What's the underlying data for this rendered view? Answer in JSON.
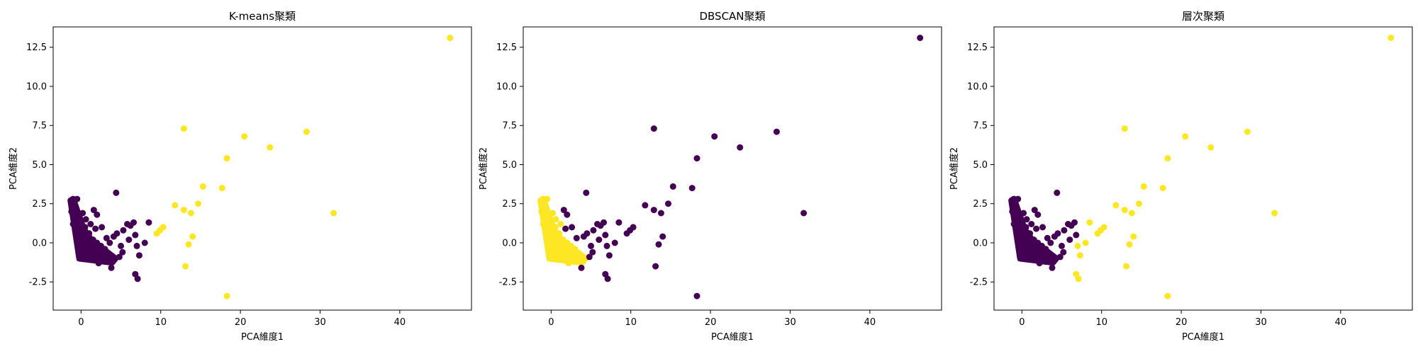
{
  "figure": {
    "background": "#ffffff"
  },
  "chart_data": [
    {
      "type": "scatter",
      "title": "K-means聚類",
      "xlabel": "PCA維度1",
      "ylabel": "PCA維度2",
      "xlim": [
        -3.5,
        49
      ],
      "ylim": [
        -4.3,
        13.8
      ],
      "xticks": [
        0,
        10,
        20,
        30,
        40
      ],
      "yticks": [
        -2.5,
        0.0,
        2.5,
        5.0,
        7.5,
        10.0,
        12.5
      ],
      "ytick_labels": [
        "-2.5",
        "0.0",
        "2.5",
        "5.0",
        "7.5",
        "10.0",
        "12.5"
      ],
      "grid": false,
      "dense_cluster_color": "#440154",
      "series": [
        {
          "color": "#440154",
          "points": [
            [
              -1.1,
              2.6
            ],
            [
              -0.5,
              2.8
            ],
            [
              -0.8,
              2.3
            ],
            [
              -1.2,
              2.0
            ],
            [
              -0.9,
              1.6
            ],
            [
              -1.0,
              1.2
            ],
            [
              -0.7,
              0.9
            ],
            [
              -0.6,
              0.5
            ],
            [
              -0.5,
              0.1
            ],
            [
              -0.4,
              -0.3
            ],
            [
              -0.2,
              -0.7
            ],
            [
              0.0,
              -0.9
            ],
            [
              0.5,
              -1.0
            ],
            [
              1.0,
              -1.0
            ],
            [
              1.5,
              -0.9
            ],
            [
              2.0,
              -1.0
            ],
            [
              2.5,
              -1.1
            ],
            [
              3.0,
              -1.2
            ],
            [
              3.5,
              -1.1
            ],
            [
              4.0,
              -1.0
            ],
            [
              0.3,
              0.3
            ],
            [
              0.8,
              0.0
            ],
            [
              1.3,
              -0.3
            ],
            [
              1.8,
              -0.5
            ],
            [
              2.3,
              -0.6
            ],
            [
              2.8,
              -0.8
            ],
            [
              0.5,
              1.0
            ],
            [
              1.0,
              0.6
            ],
            [
              1.5,
              0.2
            ],
            [
              2.0,
              0.0
            ],
            [
              2.5,
              -0.2
            ],
            [
              3.0,
              -0.4
            ],
            [
              0.2,
              1.9
            ],
            [
              0.6,
              1.5
            ],
            [
              1.2,
              1.2
            ],
            [
              1.6,
              2.1
            ],
            [
              2.0,
              1.8
            ],
            [
              1.8,
              0.9
            ],
            [
              2.6,
              1.0
            ],
            [
              3.2,
              0.3
            ],
            [
              3.6,
              0.0
            ],
            [
              4.4,
              3.2
            ],
            [
              4.1,
              0.4
            ],
            [
              4.5,
              0.6
            ],
            [
              3.8,
              -1.6
            ],
            [
              5.0,
              -0.2
            ],
            [
              5.2,
              -0.6
            ],
            [
              5.3,
              0.8
            ],
            [
              5.8,
              1.2
            ],
            [
              6.2,
              1.1
            ],
            [
              6.6,
              1.3
            ],
            [
              6.8,
              0.5
            ],
            [
              7.0,
              -0.2
            ],
            [
              6.8,
              -2.0
            ],
            [
              7.1,
              -2.3
            ],
            [
              7.3,
              -0.8
            ],
            [
              8.5,
              1.3
            ],
            [
              8.0,
              0.0
            ],
            [
              6.0,
              0.2
            ],
            [
              4.8,
              -0.9
            ],
            [
              2.2,
              -1.3
            ],
            [
              1.0,
              -0.5
            ]
          ]
        },
        {
          "color": "#fde725",
          "points": [
            [
              46.3,
              13.1
            ],
            [
              12.9,
              7.3
            ],
            [
              20.5,
              6.8
            ],
            [
              23.7,
              6.1
            ],
            [
              28.3,
              7.1
            ],
            [
              18.3,
              5.4
            ],
            [
              17.7,
              3.5
            ],
            [
              15.3,
              3.6
            ],
            [
              11.8,
              2.4
            ],
            [
              12.9,
              2.1
            ],
            [
              13.8,
              1.9
            ],
            [
              14.7,
              2.5
            ],
            [
              31.7,
              1.9
            ],
            [
              9.5,
              0.6
            ],
            [
              9.9,
              0.8
            ],
            [
              10.3,
              1.0
            ],
            [
              13.5,
              -0.1
            ],
            [
              14.0,
              0.4
            ],
            [
              13.1,
              -1.5
            ],
            [
              18.3,
              -3.4
            ]
          ]
        }
      ]
    },
    {
      "type": "scatter",
      "title": "DBSCAN聚類",
      "xlabel": "PCA維度1",
      "ylabel": "PCA維度2",
      "xlim": [
        -3.5,
        49
      ],
      "ylim": [
        -4.3,
        13.8
      ],
      "xticks": [
        0,
        10,
        20,
        30,
        40
      ],
      "yticks": [
        -2.5,
        0.0,
        2.5,
        5.0,
        7.5,
        10.0,
        12.5
      ],
      "ytick_labels": [
        "-2.5",
        "0.0",
        "2.5",
        "5.0",
        "7.5",
        "10.0",
        "12.5"
      ],
      "grid": false,
      "dense_cluster_color": "#fde725",
      "series": [
        {
          "color": "#440154",
          "points": [
            [
              46.3,
              13.1
            ],
            [
              12.9,
              7.3
            ],
            [
              20.5,
              6.8
            ],
            [
              23.7,
              6.1
            ],
            [
              28.3,
              7.1
            ],
            [
              18.3,
              5.4
            ],
            [
              17.7,
              3.5
            ],
            [
              15.3,
              3.6
            ],
            [
              11.8,
              2.4
            ],
            [
              12.9,
              2.1
            ],
            [
              13.8,
              1.9
            ],
            [
              14.7,
              2.5
            ],
            [
              31.7,
              1.9
            ],
            [
              9.5,
              0.6
            ],
            [
              9.9,
              0.8
            ],
            [
              10.3,
              1.0
            ],
            [
              13.5,
              -0.1
            ],
            [
              14.0,
              0.4
            ],
            [
              13.1,
              -1.5
            ],
            [
              18.3,
              -3.4
            ],
            [
              4.4,
              3.2
            ],
            [
              1.6,
              2.1
            ],
            [
              2.0,
              1.8
            ],
            [
              1.8,
              0.9
            ],
            [
              2.6,
              1.0
            ],
            [
              3.2,
              0.3
            ],
            [
              4.1,
              0.4
            ],
            [
              4.5,
              0.6
            ],
            [
              3.8,
              -1.6
            ],
            [
              5.0,
              -0.2
            ],
            [
              5.2,
              -0.6
            ],
            [
              5.3,
              0.8
            ],
            [
              5.8,
              1.2
            ],
            [
              6.2,
              1.1
            ],
            [
              6.6,
              1.3
            ],
            [
              6.8,
              0.5
            ],
            [
              7.0,
              -0.2
            ],
            [
              6.8,
              -2.0
            ],
            [
              7.1,
              -2.3
            ],
            [
              7.3,
              -0.8
            ],
            [
              8.5,
              1.3
            ],
            [
              8.0,
              0.0
            ],
            [
              6.0,
              0.2
            ],
            [
              4.8,
              -0.9
            ]
          ]
        },
        {
          "color": "#fde725",
          "points": [
            [
              -1.1,
              2.6
            ],
            [
              -0.5,
              2.8
            ],
            [
              -0.8,
              2.3
            ],
            [
              -1.2,
              2.0
            ],
            [
              -0.9,
              1.6
            ],
            [
              -1.0,
              1.2
            ],
            [
              -0.7,
              0.9
            ],
            [
              -0.6,
              0.5
            ],
            [
              -0.5,
              0.1
            ],
            [
              -0.4,
              -0.3
            ],
            [
              -0.2,
              -0.7
            ],
            [
              0.0,
              -0.9
            ],
            [
              0.5,
              -1.0
            ],
            [
              1.0,
              -1.0
            ],
            [
              1.5,
              -0.9
            ],
            [
              2.0,
              -1.0
            ],
            [
              2.5,
              -1.1
            ],
            [
              3.0,
              -1.2
            ],
            [
              3.5,
              -1.1
            ],
            [
              0.3,
              0.3
            ],
            [
              0.8,
              0.0
            ],
            [
              1.3,
              -0.3
            ],
            [
              1.8,
              -0.5
            ],
            [
              2.3,
              -0.6
            ],
            [
              2.8,
              -0.8
            ],
            [
              0.5,
              1.0
            ],
            [
              1.0,
              0.6
            ],
            [
              1.5,
              0.2
            ],
            [
              2.0,
              0.0
            ],
            [
              2.5,
              -0.2
            ],
            [
              3.0,
              -0.4
            ],
            [
              0.2,
              1.9
            ],
            [
              0.6,
              1.5
            ],
            [
              1.2,
              1.2
            ],
            [
              2.2,
              -1.3
            ],
            [
              1.0,
              -0.5
            ]
          ]
        }
      ]
    },
    {
      "type": "scatter",
      "title": "層次聚類",
      "xlabel": "PCA維度1",
      "ylabel": "PCA維度2",
      "xlim": [
        -3.5,
        49
      ],
      "ylim": [
        -4.3,
        13.8
      ],
      "xticks": [
        0,
        10,
        20,
        30,
        40
      ],
      "yticks": [
        -2.5,
        0.0,
        2.5,
        5.0,
        7.5,
        10.0,
        12.5
      ],
      "ytick_labels": [
        "-2.5",
        "0.0",
        "2.5",
        "5.0",
        "7.5",
        "10.0",
        "12.5"
      ],
      "grid": false,
      "dense_cluster_color": "#440154",
      "series": [
        {
          "color": "#440154",
          "points": [
            [
              -1.1,
              2.6
            ],
            [
              -0.5,
              2.8
            ],
            [
              -0.8,
              2.3
            ],
            [
              -1.2,
              2.0
            ],
            [
              -0.9,
              1.6
            ],
            [
              -1.0,
              1.2
            ],
            [
              -0.7,
              0.9
            ],
            [
              -0.6,
              0.5
            ],
            [
              -0.5,
              0.1
            ],
            [
              -0.4,
              -0.3
            ],
            [
              -0.2,
              -0.7
            ],
            [
              0.0,
              -0.9
            ],
            [
              0.5,
              -1.0
            ],
            [
              1.0,
              -1.0
            ],
            [
              1.5,
              -0.9
            ],
            [
              2.0,
              -1.0
            ],
            [
              2.5,
              -1.1
            ],
            [
              3.0,
              -1.2
            ],
            [
              3.5,
              -1.1
            ],
            [
              4.0,
              -1.0
            ],
            [
              0.3,
              0.3
            ],
            [
              0.8,
              0.0
            ],
            [
              1.3,
              -0.3
            ],
            [
              1.8,
              -0.5
            ],
            [
              2.3,
              -0.6
            ],
            [
              2.8,
              -0.8
            ],
            [
              0.5,
              1.0
            ],
            [
              1.0,
              0.6
            ],
            [
              1.5,
              0.2
            ],
            [
              2.0,
              0.0
            ],
            [
              2.5,
              -0.2
            ],
            [
              3.0,
              -0.4
            ],
            [
              0.2,
              1.9
            ],
            [
              0.6,
              1.5
            ],
            [
              1.2,
              1.2
            ],
            [
              1.6,
              2.1
            ],
            [
              2.0,
              1.8
            ],
            [
              1.8,
              0.9
            ],
            [
              2.6,
              1.0
            ],
            [
              3.2,
              0.3
            ],
            [
              3.6,
              0.0
            ],
            [
              4.4,
              3.2
            ],
            [
              4.1,
              0.4
            ],
            [
              4.5,
              0.6
            ],
            [
              3.8,
              -1.6
            ],
            [
              5.0,
              -0.2
            ],
            [
              5.2,
              -0.6
            ],
            [
              5.3,
              0.8
            ],
            [
              5.8,
              1.2
            ],
            [
              6.2,
              1.1
            ],
            [
              6.6,
              1.3
            ],
            [
              6.8,
              0.5
            ],
            [
              4.8,
              -0.9
            ],
            [
              2.2,
              -1.3
            ],
            [
              1.0,
              -0.5
            ],
            [
              6.0,
              0.2
            ]
          ]
        },
        {
          "color": "#fde725",
          "points": [
            [
              46.3,
              13.1
            ],
            [
              12.9,
              7.3
            ],
            [
              20.5,
              6.8
            ],
            [
              23.7,
              6.1
            ],
            [
              28.3,
              7.1
            ],
            [
              18.3,
              5.4
            ],
            [
              17.7,
              3.5
            ],
            [
              15.3,
              3.6
            ],
            [
              11.8,
              2.4
            ],
            [
              12.9,
              2.1
            ],
            [
              13.8,
              1.9
            ],
            [
              14.7,
              2.5
            ],
            [
              31.7,
              1.9
            ],
            [
              9.5,
              0.6
            ],
            [
              9.9,
              0.8
            ],
            [
              10.3,
              1.0
            ],
            [
              13.5,
              -0.1
            ],
            [
              14.0,
              0.4
            ],
            [
              13.1,
              -1.5
            ],
            [
              18.3,
              -3.4
            ],
            [
              7.0,
              -0.2
            ],
            [
              6.8,
              -2.0
            ],
            [
              7.1,
              -2.3
            ],
            [
              7.3,
              -0.8
            ],
            [
              8.5,
              1.3
            ],
            [
              8.0,
              0.0
            ]
          ]
        }
      ]
    }
  ]
}
